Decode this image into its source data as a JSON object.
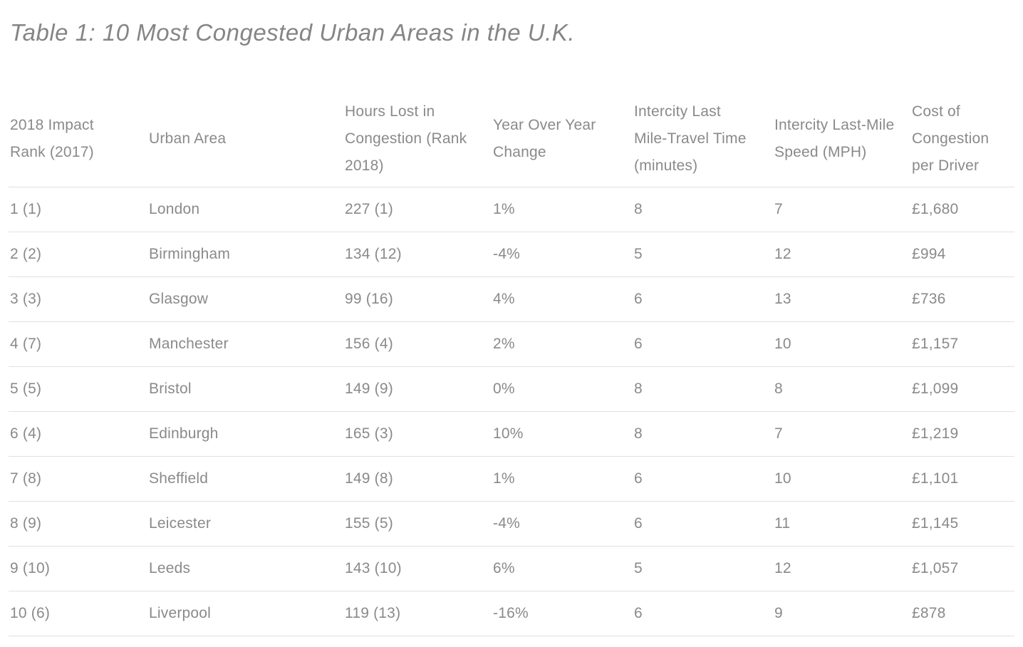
{
  "colors": {
    "background": "#ffffff",
    "title_text": "#858585",
    "body_text": "#8a8a8a",
    "row_border": "#e0e0e0"
  },
  "chart_data": {
    "type": "table",
    "title": "Table 1: 10 Most Congested Urban Areas in the U.K.",
    "columns": [
      "2018 Impact\nRank (2017)",
      "Urban Area",
      "Hours Lost in\nCongestion (Rank\n2018)",
      "Year Over Year\nChange",
      "Intercity Last\nMile-Travel Time\n(minutes)",
      "Intercity Last-Mile\nSpeed (MPH)",
      "Cost of\nCongestion\nper Driver"
    ],
    "rows": [
      [
        "1 (1)",
        "London",
        "227 (1)",
        "1%",
        "8",
        "7",
        "£1,680"
      ],
      [
        "2 (2)",
        "Birmingham",
        "134 (12)",
        "-4%",
        "5",
        "12",
        "£994"
      ],
      [
        "3 (3)",
        "Glasgow",
        "99 (16)",
        "4%",
        "6",
        "13",
        "£736"
      ],
      [
        "4 (7)",
        "Manchester",
        "156 (4)",
        "2%",
        "6",
        "10",
        "£1,157"
      ],
      [
        "5 (5)",
        "Bristol",
        "149 (9)",
        "0%",
        "8",
        "8",
        "£1,099"
      ],
      [
        "6 (4)",
        "Edinburgh",
        "165 (3)",
        "10%",
        "8",
        "7",
        "£1,219"
      ],
      [
        "7 (8)",
        "Sheffield",
        "149 (8)",
        "1%",
        "6",
        "10",
        "£1,101"
      ],
      [
        "8 (9)",
        "Leicester",
        "155 (5)",
        "-4%",
        "6",
        "11",
        "£1,145"
      ],
      [
        "9 (10)",
        "Leeds",
        "143 (10)",
        "6%",
        "5",
        "12",
        "£1,057"
      ],
      [
        "10 (6)",
        "Liverpool",
        "119 (13)",
        "-16%",
        "6",
        "9",
        "£878"
      ]
    ]
  }
}
